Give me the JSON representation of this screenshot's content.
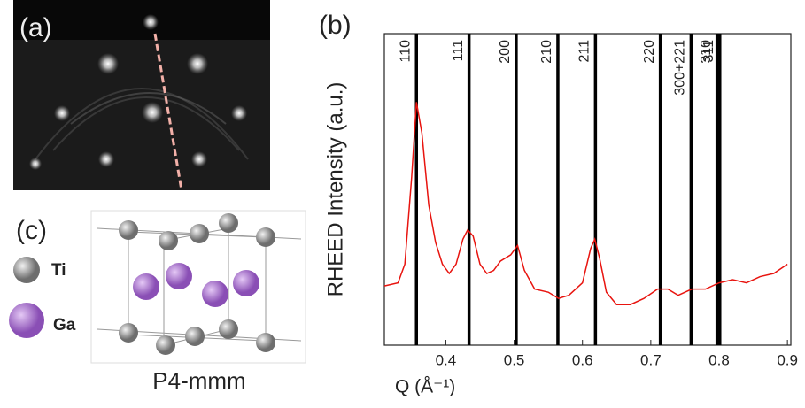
{
  "panel_labels": [
    "(a)",
    "(b)",
    "(c)"
  ],
  "legend": [
    "Ti",
    "Ga"
  ],
  "structure_label": "P4-mmm",
  "chart_data": {
    "type": "line",
    "x_label": "Q (Å⁻¹)",
    "y_label": "RHEED Intensity (a.u.)",
    "xlim": [
      0.31,
      0.905
    ],
    "ylim": [
      0,
      100
    ],
    "xticks": [
      0.4,
      0.5,
      0.6,
      0.7,
      0.8,
      0.9
    ],
    "series": [
      {
        "color": "#e8140f",
        "x": [
          0.31,
          0.33,
          0.34,
          0.35,
          0.357,
          0.365,
          0.375,
          0.385,
          0.395,
          0.405,
          0.415,
          0.425,
          0.432,
          0.44,
          0.45,
          0.46,
          0.47,
          0.48,
          0.495,
          0.505,
          0.515,
          0.53,
          0.55,
          0.565,
          0.58,
          0.6,
          0.612,
          0.618,
          0.625,
          0.635,
          0.65,
          0.67,
          0.69,
          0.71,
          0.725,
          0.74,
          0.76,
          0.78,
          0.8,
          0.82,
          0.84,
          0.86,
          0.88,
          0.9
        ],
        "values": [
          19,
          20,
          26,
          54,
          78,
          68,
          45,
          33,
          26,
          23,
          26,
          34,
          37,
          35,
          26,
          23,
          24,
          27,
          29,
          32,
          24,
          18,
          17,
          15,
          16,
          20,
          31,
          34,
          28,
          17,
          13,
          13,
          15,
          18,
          18,
          16,
          18,
          18,
          20,
          21,
          20,
          22,
          23,
          26
        ]
      }
    ],
    "markers": [
      {
        "label": "110",
        "value": 0.357
      },
      {
        "label": "111",
        "value": 0.434
      },
      {
        "label": "200",
        "value": 0.503
      },
      {
        "label": "210",
        "value": 0.564
      },
      {
        "label": "211",
        "value": 0.619
      },
      {
        "label": "220",
        "value": 0.714
      },
      {
        "label": "300+221",
        "value": 0.759
      },
      {
        "label": "310",
        "value": 0.797
      },
      {
        "label": "311",
        "value": 0.801
      }
    ]
  }
}
